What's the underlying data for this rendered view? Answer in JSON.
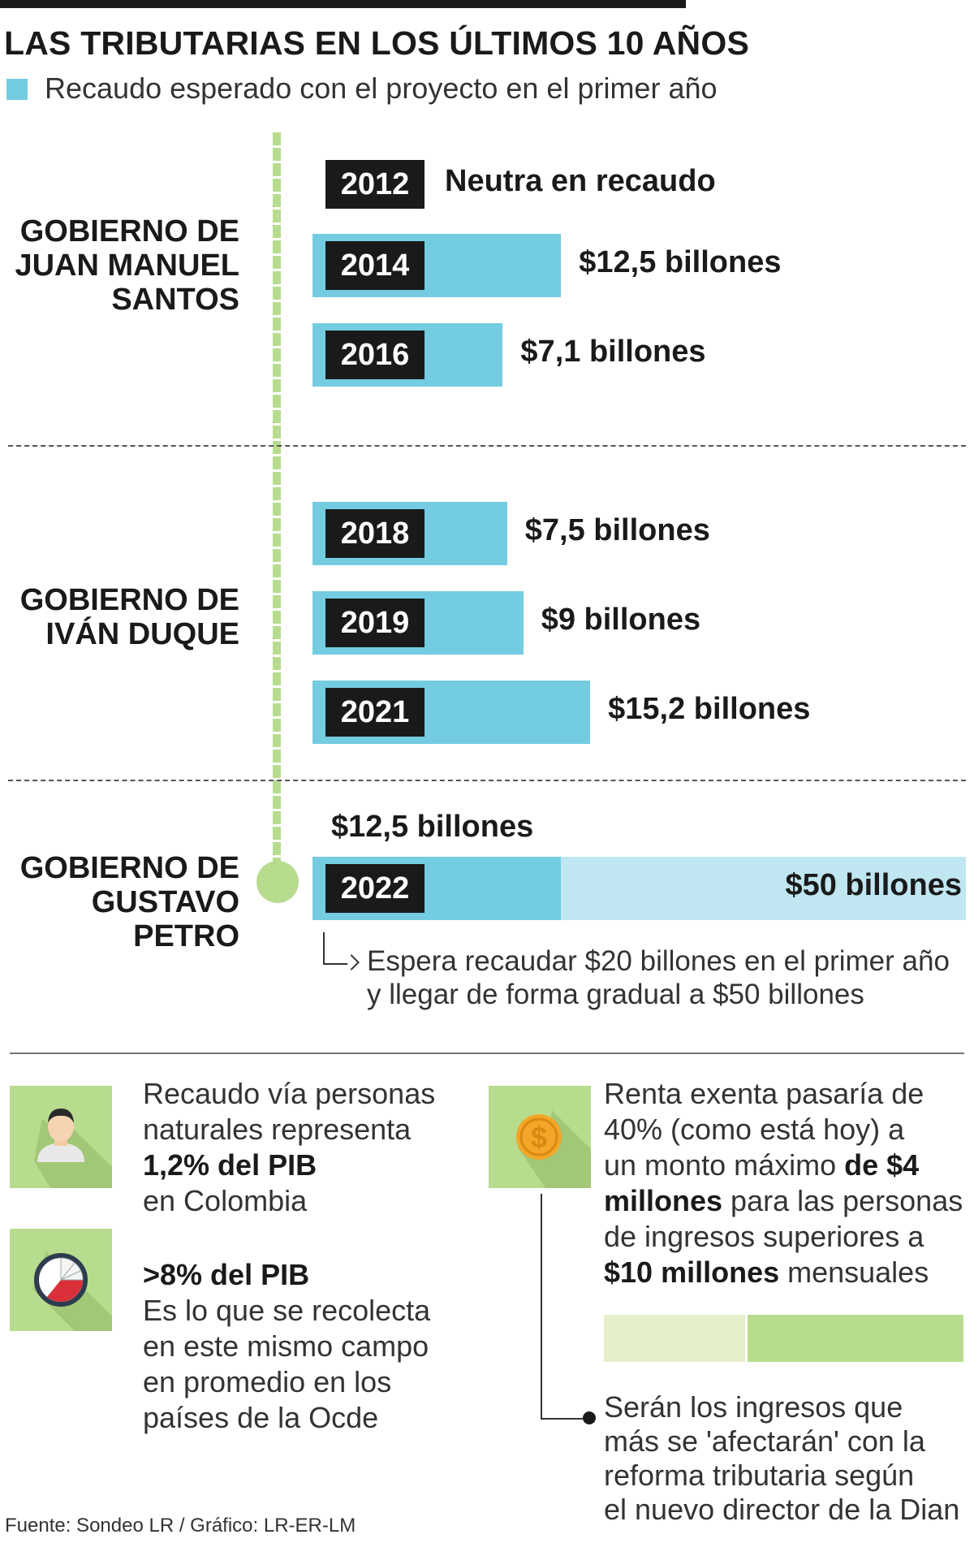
{
  "title": "LAS TRIBUTARIAS EN LOS ÚLTIMOS 10 AÑOS",
  "legend": "Recaudo esperado con el proyecto en el primer año",
  "colors": {
    "bar": "#74cce0",
    "bar_light": "#bfe6f1",
    "timeline": "#b8dc8e",
    "year_box": "#1a1a1a"
  },
  "governments": [
    {
      "label": "GOBIERNO DE\nJUAN MANUEL\nSANTOS"
    },
    {
      "label": "GOBIERNO DE\nIVÁN DUQUE"
    },
    {
      "label": "GOBIERNO DE\nGUSTAVO PETRO"
    }
  ],
  "chart_data": {
    "type": "bar",
    "orientation": "horizontal",
    "unit": "billones",
    "categories": [
      "2012",
      "2014",
      "2016",
      "2018",
      "2019",
      "2021",
      "2022"
    ],
    "values": [
      0,
      12.5,
      7.1,
      7.5,
      9,
      15.2,
      12.5
    ],
    "labels": [
      "Neutra en recaudo",
      "$12,5 billones",
      "$7,1 billones",
      "$7,5 billones",
      "$9 billones",
      "$15,2 billones",
      "$12,5 billones"
    ],
    "petro_target": {
      "value": 50,
      "label": "$50 billones"
    }
  },
  "petro_note": "Espera recaudar $20 billones en el primer año\ny llegar de forma gradual a $50 billones",
  "facts": {
    "personas": {
      "line1": "Recaudo vía personas",
      "line2": "naturales representa",
      "highlight": "1,2% del PIB",
      "line3": "en Colombia",
      "icon": "person-icon"
    },
    "ocde": {
      "highlight": ">8% del PIB",
      "lines": [
        "Es lo que se recolecta",
        "en este mismo campo",
        "en promedio en los",
        "países de la Ocde"
      ],
      "icon": "pie-chart-icon"
    },
    "renta": {
      "line1": "Renta exenta pasaría de",
      "line2": "40% (como está hoy) a",
      "line3_pre": "un monto máximo ",
      "line3_bold": "de $4",
      "line4_bold": "millones",
      "line4_post": " para las personas",
      "line5": "de ingresos superiores a",
      "line6_bold": "$10 millones",
      "line6_post": " mensuales",
      "icon": "dollar-coin-icon"
    },
    "ingresos": {
      "lines": [
        "Serán los ingresos que",
        "más se 'afectarán' con la",
        "reforma tributaria según",
        "el nuevo director de la Dian"
      ]
    }
  },
  "source": "Fuente: Sondeo LR / Gráfico: LR-ER-LM"
}
